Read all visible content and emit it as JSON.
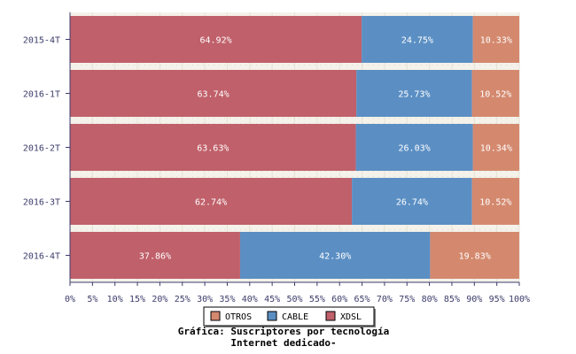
{
  "chart_data": {
    "type": "bar",
    "orientation": "horizontal",
    "stacked": true,
    "categories": [
      "2015-4T",
      "2016-1T",
      "2016-2T",
      "2016-3T",
      "2016-4T"
    ],
    "series": [
      {
        "name": "XDSL",
        "color": "#c0606a",
        "values": [
          64.92,
          63.74,
          63.63,
          62.74,
          37.86
        ]
      },
      {
        "name": "CABLE",
        "color": "#5b8fc4",
        "values": [
          24.75,
          25.73,
          26.03,
          26.74,
          42.3
        ]
      },
      {
        "name": "OTROS",
        "color": "#d4896e",
        "values": [
          10.33,
          10.52,
          10.34,
          10.52,
          19.83
        ]
      }
    ],
    "legend_order": [
      "OTROS",
      "CABLE",
      "XDSL"
    ],
    "legend_position": "bottom",
    "xlim": [
      0,
      100
    ],
    "xticks": [
      "0%",
      "5%",
      "10%",
      "15%",
      "20%",
      "25%",
      "30%",
      "35%",
      "40%",
      "45%",
      "50%",
      "55%",
      "60%",
      "65%",
      "70%",
      "75%",
      "80%",
      "85%",
      "90%",
      "95%",
      "100%"
    ],
    "value_suffix": "%",
    "caption": [
      "Gráfica: Suscriptores por tecnología",
      "Internet dedicado-"
    ],
    "grid": true
  }
}
